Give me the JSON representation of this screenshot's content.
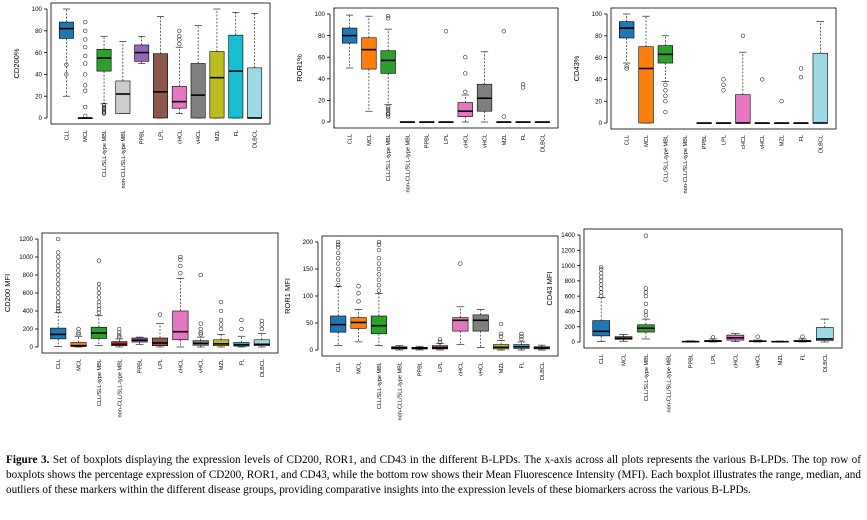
{
  "caption": {
    "label": "Figure 3.",
    "text": " Set of boxplots displaying the expression levels of CD200, ROR1, and CD43 in the different B-LPDs. The x-axis across all plots represents the various B-LPDs. The top row of boxplots shows the percentage expression of CD200, ROR1, and CD43, while the bottom row shows their Mean Fluorescence Intensity (MFI). Each boxplot illustrates the range, median, and outliers of these markers within the different disease groups, providing comparative insights into the expression levels of these biomarkers across the various B-LPDs."
  },
  "chart_data": [
    {
      "type": "boxplot",
      "ylabel": "CD200%",
      "ylim": [
        0,
        100
      ],
      "yticks": [
        0,
        20,
        40,
        60,
        80,
        100
      ],
      "categories": [
        "CLL",
        "MCL",
        "CLL/SLL-type MBL",
        "non-CLL/SLL-type MBL",
        "PPBL",
        "LPL",
        "cHCL",
        "vHCL",
        "MZL",
        "FL",
        "DLBCL"
      ],
      "colors": [
        "#1f77b4",
        "#ff7f0e",
        "#2ca02c",
        null,
        "#9467bd",
        "#8c564b",
        "#e377c2",
        "#7f7f7f",
        "#bcbd22",
        "#17becf",
        "#9edae5"
      ],
      "boxes": [
        {
          "min": 20,
          "q1": 73,
          "median": 82,
          "q3": 88,
          "max": 100,
          "outliers": [
            49,
            40
          ]
        },
        {
          "min": 0,
          "q1": 0,
          "median": 0,
          "q3": 0,
          "max": 0,
          "outliers": [
            88,
            80,
            72,
            65,
            57,
            50,
            40,
            30,
            25,
            10,
            2
          ]
        },
        {
          "min": 13,
          "q1": 43,
          "median": 55,
          "q3": 63,
          "max": 75,
          "outliers": [
            12,
            10,
            9,
            8,
            6,
            5,
            4
          ]
        },
        {
          "min": 4,
          "q1": 4,
          "median": 22,
          "q3": 34,
          "max": 70,
          "outliers": []
        },
        {
          "min": 50,
          "q1": 52,
          "median": 60,
          "q3": 67,
          "max": 75,
          "outliers": []
        },
        {
          "min": 0,
          "q1": 0,
          "median": 24,
          "q3": 59,
          "max": 93,
          "outliers": []
        },
        {
          "min": 4,
          "q1": 9,
          "median": 15,
          "q3": 29,
          "max": 65,
          "outliers": [
            68,
            72,
            75,
            80
          ]
        },
        {
          "min": 0,
          "q1": 0,
          "median": 21,
          "q3": 50,
          "max": 85,
          "outliers": []
        },
        {
          "min": 0,
          "q1": 0,
          "median": 37,
          "q3": 61,
          "max": 100,
          "outliers": []
        },
        {
          "min": 0,
          "q1": 0,
          "median": 43,
          "q3": 76,
          "max": 97,
          "outliers": []
        },
        {
          "min": 0,
          "q1": 0,
          "median": 0,
          "q3": 46,
          "max": 96,
          "outliers": []
        }
      ]
    },
    {
      "type": "boxplot",
      "ylabel": "ROR1%",
      "ylim": [
        0,
        100
      ],
      "yticks": [
        0,
        20,
        40,
        60,
        80,
        100
      ],
      "categories": [
        "CLL",
        "MCL",
        "CLL/SLL-type MBL",
        "non-CLL/SLL-type MBL",
        "PPBL",
        "LPL",
        "cHCL",
        "vHCL",
        "MZL",
        "FL",
        "DLBCL"
      ],
      "colors": [
        "#1f77b4",
        "#ff7f0e",
        "#2ca02c",
        "#2ca02c",
        "#9467bd",
        "#8c564b",
        "#e377c2",
        "#7f7f7f",
        "#bcbd22",
        "#17becf",
        "#9edae5"
      ],
      "boxes": [
        {
          "min": 50,
          "q1": 73,
          "median": 80,
          "q3": 87,
          "max": 99,
          "outliers": []
        },
        {
          "min": 10,
          "q1": 49,
          "median": 67,
          "q3": 78,
          "max": 98,
          "outliers": []
        },
        {
          "min": 16,
          "q1": 45,
          "median": 57,
          "q3": 66,
          "max": 86,
          "outliers": [
            98,
            96,
            14,
            12,
            10,
            8,
            7,
            5
          ]
        },
        {
          "min": 0,
          "q1": 0,
          "median": 0,
          "q3": 0,
          "max": 0,
          "outliers": []
        },
        {
          "min": 0,
          "q1": 0,
          "median": 0,
          "q3": 0,
          "max": 0,
          "outliers": []
        },
        {
          "min": 0,
          "q1": 0,
          "median": 0,
          "q3": 0,
          "max": 0,
          "outliers": [
            84
          ]
        },
        {
          "min": 0,
          "q1": 5,
          "median": 10,
          "q3": 18,
          "max": 25,
          "outliers": [
            28,
            45,
            60
          ]
        },
        {
          "min": 0,
          "q1": 10,
          "median": 22,
          "q3": 35,
          "max": 65,
          "outliers": []
        },
        {
          "min": 0,
          "q1": 0,
          "median": 0,
          "q3": 0,
          "max": 0,
          "outliers": [
            84,
            5
          ]
        },
        {
          "min": 0,
          "q1": 0,
          "median": 0,
          "q3": 0,
          "max": 0,
          "outliers": [
            35,
            32
          ]
        },
        {
          "min": 0,
          "q1": 0,
          "median": 0,
          "q3": 0,
          "max": 0,
          "outliers": []
        }
      ]
    },
    {
      "type": "boxplot",
      "ylabel": "CD43%",
      "ylim": [
        0,
        100
      ],
      "yticks": [
        0,
        20,
        40,
        60,
        80,
        100
      ],
      "categories": [
        "CLL",
        "MCL",
        "CLL/SLL-type MBL",
        "non-CLL/SLL-type MBL",
        "PPBL",
        "LPL",
        "cHCL",
        "vHCL",
        "MZL",
        "FL",
        "DLBCL"
      ],
      "colors": [
        "#1f77b4",
        "#ff7f0e",
        "#2ca02c",
        null,
        "#9467bd",
        "#8c564b",
        "#e377c2",
        "#7f7f7f",
        "#bcbd22",
        "#17becf",
        "#9edae5"
      ],
      "boxes": [
        {
          "min": 55,
          "q1": 78,
          "median": 87,
          "q3": 93,
          "max": 100,
          "outliers": [
            52,
            50
          ]
        },
        {
          "min": 0,
          "q1": 0,
          "median": 50,
          "q3": 70,
          "max": 98,
          "outliers": []
        },
        {
          "min": 38,
          "q1": 55,
          "median": 63,
          "q3": 71,
          "max": 80,
          "outliers": [
            35,
            30,
            25,
            20,
            10
          ]
        },
        null,
        {
          "min": 0,
          "q1": 0,
          "median": 0,
          "q3": 0,
          "max": 0,
          "outliers": []
        },
        {
          "min": 0,
          "q1": 0,
          "median": 0,
          "q3": 0,
          "max": 0,
          "outliers": [
            40,
            35,
            30
          ]
        },
        {
          "min": 0,
          "q1": 0,
          "median": 0,
          "q3": 26,
          "max": 65,
          "outliers": [
            80
          ]
        },
        {
          "min": 0,
          "q1": 0,
          "median": 0,
          "q3": 0,
          "max": 0,
          "outliers": [
            40
          ]
        },
        {
          "min": 0,
          "q1": 0,
          "median": 0,
          "q3": 0,
          "max": 0,
          "outliers": [
            20
          ]
        },
        {
          "min": 0,
          "q1": 0,
          "median": 0,
          "q3": 0,
          "max": 0,
          "outliers": [
            50,
            42
          ]
        },
        {
          "min": 0,
          "q1": 0,
          "median": 0,
          "q3": 64,
          "max": 93,
          "outliers": []
        }
      ]
    },
    {
      "type": "boxplot",
      "ylabel": "CD200 MFI",
      "ylim": [
        0,
        1200
      ],
      "yticks": [
        0,
        200,
        400,
        600,
        800,
        1000,
        1200
      ],
      "categories": [
        "CLL",
        "MCL",
        "CLL/SLL-type MBL",
        "non-CLL/SLL-type MBL",
        "PPBL",
        "LPL",
        "cHCL",
        "vHCL",
        "MZL",
        "FL",
        "DLBCL"
      ],
      "colors": [
        "#1f77b4",
        "#ff7f0e",
        "#2ca02c",
        "#d62728",
        "#9467bd",
        "#8c564b",
        "#e377c2",
        "#7f7f7f",
        "#bcbd22",
        "#17becf",
        "#9edae5"
      ],
      "boxes": [
        {
          "min": 5,
          "q1": 90,
          "median": 140,
          "q3": 210,
          "max": 380,
          "outliers": [
            1200,
            1050,
            1000,
            950,
            900,
            850,
            800,
            750,
            700,
            650,
            600,
            550,
            500,
            460,
            430,
            400
          ]
        },
        {
          "min": 0,
          "q1": 5,
          "median": 15,
          "q3": 50,
          "max": 120,
          "outliers": [
            200,
            160,
            140
          ]
        },
        {
          "min": 15,
          "q1": 95,
          "median": 155,
          "q3": 220,
          "max": 350,
          "outliers": [
            960,
            700,
            650,
            600,
            550,
            500,
            460,
            420,
            380
          ]
        },
        {
          "min": 0,
          "q1": 15,
          "median": 30,
          "q3": 60,
          "max": 90,
          "outliers": [
            200,
            160,
            130,
            110
          ]
        },
        {
          "min": 30,
          "q1": 55,
          "median": 75,
          "q3": 100,
          "max": 110,
          "outliers": []
        },
        {
          "min": 0,
          "q1": 15,
          "median": 45,
          "q3": 100,
          "max": 260,
          "outliers": [
            360
          ]
        },
        {
          "min": 0,
          "q1": 80,
          "median": 170,
          "q3": 400,
          "max": 760,
          "outliers": [
            1000,
            970,
            900,
            820
          ]
        },
        {
          "min": 0,
          "q1": 20,
          "median": 40,
          "q3": 70,
          "max": 110,
          "outliers": [
            800,
            260,
            200,
            160,
            140
          ]
        },
        {
          "min": 0,
          "q1": 15,
          "median": 35,
          "q3": 80,
          "max": 140,
          "outliers": [
            500,
            400,
            300,
            250,
            200
          ]
        },
        {
          "min": 0,
          "q1": 10,
          "median": 25,
          "q3": 50,
          "max": 120,
          "outliers": [
            300,
            200
          ]
        },
        {
          "min": 0,
          "q1": 15,
          "median": 30,
          "q3": 80,
          "max": 150,
          "outliers": [
            290,
            250,
            200
          ]
        }
      ]
    },
    {
      "type": "boxplot",
      "ylabel": "ROR1 MFI",
      "ylim": [
        0,
        200
      ],
      "yticks": [
        0,
        50,
        100,
        150,
        200
      ],
      "categories": [
        "CLL",
        "MCL",
        "CLL/SLL-type MBL",
        "non-CLL/SLL-type MBL",
        "PPBL",
        "LPL",
        "cHCL",
        "vHCL",
        "MZL",
        "FL",
        "DLBCL"
      ],
      "colors": [
        "#1f77b4",
        "#ff7f0e",
        "#2ca02c",
        "#7f7f7f",
        "#9467bd",
        "#8c564b",
        "#e377c2",
        "#7f7f7f",
        "#bcbd22",
        "#17becf",
        "#9edae5"
      ],
      "boxes": [
        {
          "min": 8,
          "q1": 33,
          "median": 47,
          "q3": 63,
          "max": 118,
          "outliers": [
            200,
            195,
            190,
            180,
            170,
            160,
            150,
            140,
            130,
            120
          ]
        },
        {
          "min": 15,
          "q1": 40,
          "median": 51,
          "q3": 60,
          "max": 75,
          "outliers": [
            118,
            105,
            90
          ]
        },
        {
          "min": 8,
          "q1": 30,
          "median": 45,
          "q3": 63,
          "max": 105,
          "outliers": [
            200,
            195,
            185,
            170,
            160,
            150,
            140,
            130,
            120,
            110
          ]
        },
        {
          "min": 0,
          "q1": 2,
          "median": 4,
          "q3": 6,
          "max": 8,
          "outliers": []
        },
        {
          "min": 0,
          "q1": 2,
          "median": 3,
          "q3": 5,
          "max": 7,
          "outliers": []
        },
        {
          "min": 0,
          "q1": 2,
          "median": 4,
          "q3": 8,
          "max": 12,
          "outliers": [
            20,
            15
          ]
        },
        {
          "min": 10,
          "q1": 35,
          "median": 55,
          "q3": 60,
          "max": 80,
          "outliers": [
            160
          ]
        },
        {
          "min": 5,
          "q1": 35,
          "median": 55,
          "q3": 65,
          "max": 75,
          "outliers": []
        },
        {
          "min": 0,
          "q1": 2,
          "median": 5,
          "q3": 10,
          "max": 18,
          "outliers": [
            48,
            30,
            25
          ]
        },
        {
          "min": 0,
          "q1": 3,
          "median": 6,
          "q3": 10,
          "max": 15,
          "outliers": [
            30,
            25,
            20
          ]
        },
        {
          "min": 0,
          "q1": 2,
          "median": 4,
          "q3": 6,
          "max": 9,
          "outliers": []
        }
      ]
    },
    {
      "type": "boxplot",
      "ylabel": "CD43 MFI",
      "ylim": [
        0,
        1400
      ],
      "yticks": [
        0,
        200,
        400,
        600,
        800,
        1000,
        1200,
        1400
      ],
      "categories": [
        "CLL",
        "MCL",
        "CLL/SLL-type MBL",
        "non-CLL/SLL-type MBL",
        "PPBL",
        "LPL",
        "cHCL",
        "vHCL",
        "MZL",
        "FL",
        "DLBCL"
      ],
      "colors": [
        "#1f77b4",
        "#ff7f0e",
        "#2ca02c",
        null,
        "#9467bd",
        "#8c564b",
        "#e377c2",
        "#7f7f7f",
        "#bcbd22",
        "#17becf",
        "#9edae5"
      ],
      "boxes": [
        {
          "min": 5,
          "q1": 80,
          "median": 140,
          "q3": 280,
          "max": 580,
          "outliers": [
            980,
            950,
            900,
            850,
            800,
            750,
            700,
            650,
            600
          ]
        },
        {
          "min": 10,
          "q1": 35,
          "median": 50,
          "q3": 70,
          "max": 100,
          "outliers": []
        },
        {
          "min": 40,
          "q1": 130,
          "median": 180,
          "q3": 225,
          "max": 300,
          "outliers": [
            1390,
            700,
            650,
            600,
            500,
            400,
            350
          ]
        },
        null,
        {
          "min": 0,
          "q1": 0,
          "median": 5,
          "q3": 10,
          "max": 15,
          "outliers": []
        },
        {
          "min": 0,
          "q1": 5,
          "median": 10,
          "q3": 20,
          "max": 40,
          "outliers": [
            60
          ]
        },
        {
          "min": 5,
          "q1": 25,
          "median": 55,
          "q3": 90,
          "max": 110,
          "outliers": []
        },
        {
          "min": 0,
          "q1": 5,
          "median": 10,
          "q3": 15,
          "max": 25,
          "outliers": [
            70
          ]
        },
        {
          "min": 0,
          "q1": 2,
          "median": 5,
          "q3": 8,
          "max": 12,
          "outliers": []
        },
        {
          "min": 0,
          "q1": 5,
          "median": 10,
          "q3": 20,
          "max": 40,
          "outliers": [
            70
          ]
        },
        {
          "min": 0,
          "q1": 20,
          "median": 40,
          "q3": 190,
          "max": 300,
          "outliers": []
        }
      ]
    }
  ]
}
